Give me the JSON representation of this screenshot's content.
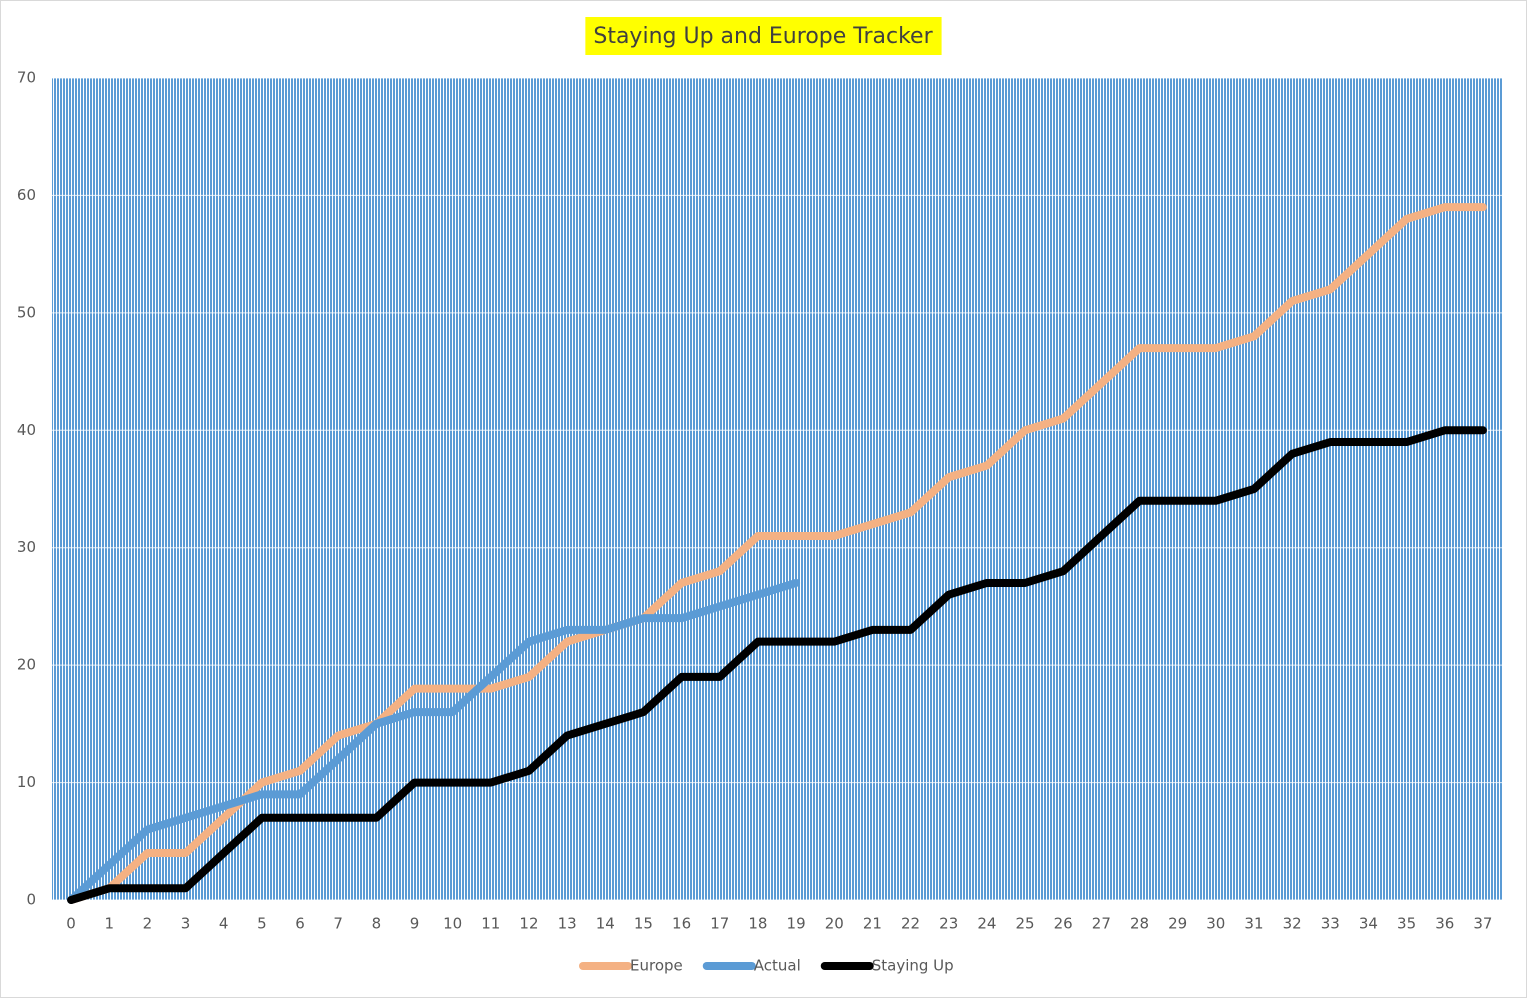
{
  "chart_data": {
    "type": "line",
    "title": "Staying Up and Europe Tracker",
    "x": [
      0,
      1,
      2,
      3,
      4,
      5,
      6,
      7,
      8,
      9,
      10,
      11,
      12,
      13,
      14,
      15,
      16,
      17,
      18,
      19,
      20,
      21,
      22,
      23,
      24,
      25,
      26,
      27,
      28,
      29,
      30,
      31,
      32,
      33,
      34,
      35,
      36,
      37
    ],
    "series": [
      {
        "name": "Europe",
        "color": "#f4b183",
        "values": [
          0,
          1,
          4,
          4,
          7,
          10,
          11,
          14,
          15,
          18,
          18,
          18,
          19,
          22,
          23,
          24,
          27,
          28,
          31,
          31,
          31,
          32,
          33,
          36,
          37,
          40,
          41,
          44,
          47,
          47,
          47,
          48,
          51,
          52,
          55,
          58,
          59,
          59
        ]
      },
      {
        "name": "Actual",
        "color": "#5b9bd5",
        "values": [
          0,
          3,
          6,
          7,
          8,
          9,
          9,
          12,
          15,
          16,
          16,
          19,
          22,
          23,
          23,
          24,
          24,
          25,
          26,
          27,
          null,
          null,
          null,
          null,
          null,
          null,
          null,
          null,
          null,
          null,
          null,
          null,
          null,
          null,
          null,
          null,
          null,
          null
        ]
      },
      {
        "name": "Staying Up",
        "color": "#000000",
        "values": [
          0,
          1,
          1,
          1,
          4,
          7,
          7,
          7,
          7,
          10,
          10,
          10,
          11,
          14,
          15,
          16,
          19,
          19,
          22,
          22,
          22,
          23,
          23,
          26,
          27,
          27,
          28,
          31,
          34,
          34,
          34,
          35,
          38,
          39,
          39,
          39,
          40,
          40
        ]
      }
    ],
    "ylim": [
      0,
      70
    ],
    "yticks": [
      0,
      10,
      20,
      30,
      40,
      50,
      60,
      70
    ],
    "grid": true,
    "legend": "bottom"
  }
}
